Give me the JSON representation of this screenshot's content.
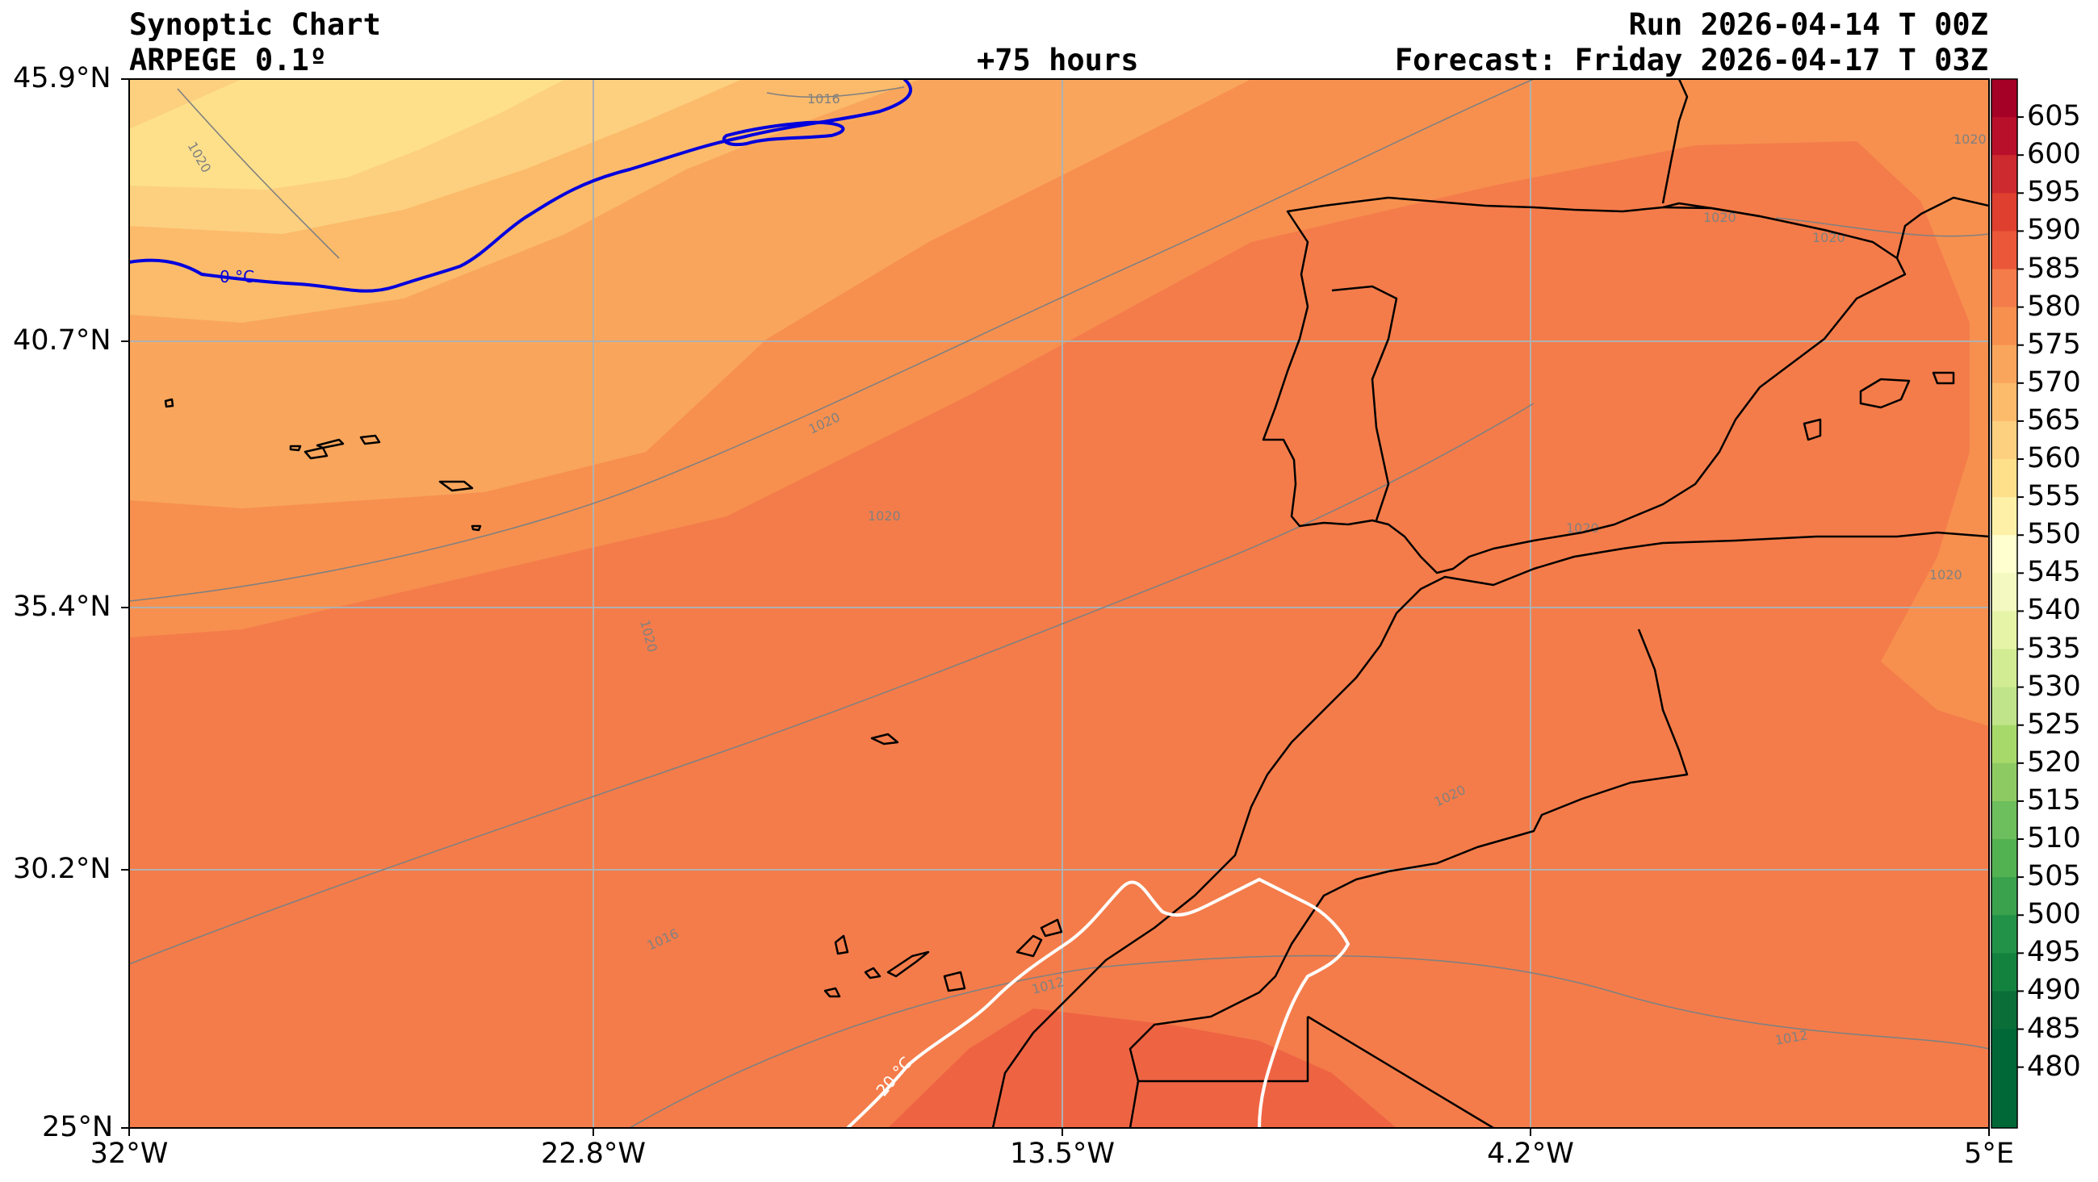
{
  "header": {
    "title": "Synoptic Chart",
    "model": "ARPEGE 0.1º",
    "lead_time": "+75 hours",
    "run": "Run 2026-04-14 T 00Z",
    "forecast": "Forecast: Friday 2026-04-17 T 03Z"
  },
  "axes": {
    "lat_labels": [
      "45.9°N",
      "40.7°N",
      "35.4°N",
      "30.2°N",
      "25°N"
    ],
    "lon_labels": [
      "32°W",
      "22.8°W",
      "13.5°W",
      "4.2°W",
      "5°E"
    ]
  },
  "colorbar": {
    "levels": [
      "605",
      "600",
      "595",
      "590",
      "585",
      "580",
      "575",
      "570",
      "565",
      "560",
      "555",
      "550",
      "545",
      "540",
      "535",
      "530",
      "525",
      "520",
      "515",
      "510",
      "505",
      "500",
      "495",
      "490",
      "485",
      "480"
    ],
    "colors": {
      "580": "#f47c4a",
      "585": "#ee6443",
      "575": "#f7904f",
      "570": "#f9a65c",
      "565": "#fbbb6b",
      "560": "#fdd080",
      "555": "#fee08b"
    }
  },
  "contour_labels": {
    "isobar_1016": "1016",
    "isobar_1020": "1020",
    "isobar_1012": "1012",
    "isotherm_0c": "0 °C",
    "isotherm_20c": "20 °C"
  }
}
